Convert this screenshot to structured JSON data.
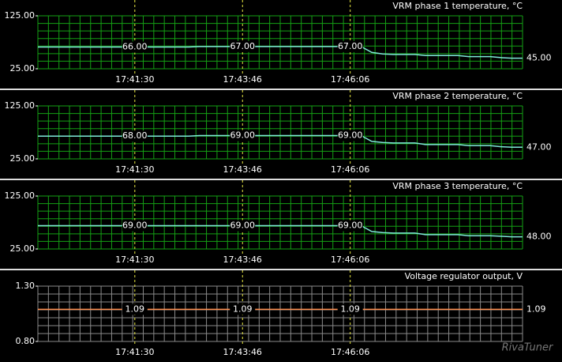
{
  "chart_data": [
    {
      "type": "line",
      "title": "VRM phase 1 temperature, °C",
      "categories": [
        null,
        null,
        null,
        null,
        null,
        null,
        null,
        null,
        null,
        "17:41:30",
        null,
        null,
        null,
        null,
        null,
        null,
        null,
        null,
        null,
        "17:43:46",
        null,
        null,
        null,
        null,
        null,
        null,
        null,
        null,
        null,
        "17:46:06",
        null,
        null,
        null,
        null,
        null,
        null,
        null,
        null,
        null,
        null,
        null,
        null,
        null,
        null,
        null,
        null
      ],
      "values": [
        66,
        66,
        66,
        66,
        66,
        66,
        66,
        66,
        66,
        66,
        66,
        66,
        66,
        66,
        66,
        67,
        67,
        67,
        67,
        67,
        67,
        67,
        67,
        67,
        67,
        67,
        67,
        67,
        67,
        67,
        67,
        56,
        53,
        52,
        52,
        52,
        50,
        50,
        50,
        50,
        48,
        48,
        48,
        46,
        45,
        45
      ],
      "value_labels": [
        null,
        null,
        null,
        null,
        null,
        null,
        null,
        null,
        null,
        "66.00",
        null,
        null,
        null,
        null,
        null,
        null,
        null,
        null,
        null,
        "67.00",
        null,
        null,
        null,
        null,
        null,
        null,
        null,
        null,
        null,
        "67.00",
        null,
        null,
        null,
        null,
        null,
        null,
        null,
        null,
        null,
        null,
        null,
        null,
        null,
        null,
        null,
        "45.00"
      ],
      "color": "#7fe8d8",
      "grid": true,
      "grid_color": "#14a014",
      "ylim": [
        25,
        125
      ],
      "yticks": [
        {
          "value": 125,
          "label": "125.00"
        },
        {
          "value": 25,
          "label": "25.00"
        }
      ]
    },
    {
      "type": "line",
      "title": "VRM phase 2 temperature, °C",
      "categories": [
        null,
        null,
        null,
        null,
        null,
        null,
        null,
        null,
        null,
        "17:41:30",
        null,
        null,
        null,
        null,
        null,
        null,
        null,
        null,
        null,
        "17:43:46",
        null,
        null,
        null,
        null,
        null,
        null,
        null,
        null,
        null,
        "17:46:06",
        null,
        null,
        null,
        null,
        null,
        null,
        null,
        null,
        null,
        null,
        null,
        null,
        null,
        null,
        null,
        null
      ],
      "values": [
        68,
        68,
        68,
        68,
        68,
        68,
        68,
        68,
        68,
        68,
        68,
        68,
        68,
        68,
        68,
        69,
        69,
        69,
        69,
        69,
        69,
        69,
        69,
        69,
        69,
        69,
        69,
        69,
        69,
        69,
        69,
        58,
        56,
        55,
        55,
        55,
        52,
        52,
        52,
        52,
        50,
        50,
        50,
        48,
        47,
        47
      ],
      "value_labels": [
        null,
        null,
        null,
        null,
        null,
        null,
        null,
        null,
        null,
        "68.00",
        null,
        null,
        null,
        null,
        null,
        null,
        null,
        null,
        null,
        "69.00",
        null,
        null,
        null,
        null,
        null,
        null,
        null,
        null,
        null,
        "69.00",
        null,
        null,
        null,
        null,
        null,
        null,
        null,
        null,
        null,
        null,
        null,
        null,
        null,
        null,
        null,
        "47.00"
      ],
      "color": "#7fe8d8",
      "grid": true,
      "grid_color": "#14a014",
      "ylim": [
        25,
        125
      ],
      "yticks": [
        {
          "value": 125,
          "label": "125.00"
        },
        {
          "value": 25,
          "label": "25.00"
        }
      ]
    },
    {
      "type": "line",
      "title": "VRM phase 3 temperature, °C",
      "categories": [
        null,
        null,
        null,
        null,
        null,
        null,
        null,
        null,
        null,
        "17:41:30",
        null,
        null,
        null,
        null,
        null,
        null,
        null,
        null,
        null,
        "17:43:46",
        null,
        null,
        null,
        null,
        null,
        null,
        null,
        null,
        null,
        "17:46:06",
        null,
        null,
        null,
        null,
        null,
        null,
        null,
        null,
        null,
        null,
        null,
        null,
        null,
        null,
        null,
        null
      ],
      "values": [
        69,
        69,
        69,
        69,
        69,
        69,
        69,
        69,
        69,
        69,
        69,
        69,
        69,
        69,
        69,
        69,
        69,
        69,
        69,
        69,
        69,
        69,
        69,
        69,
        69,
        69,
        69,
        69,
        69,
        69,
        69,
        58,
        56,
        55,
        55,
        55,
        52,
        52,
        52,
        52,
        50,
        50,
        50,
        49,
        48,
        48
      ],
      "value_labels": [
        null,
        null,
        null,
        null,
        null,
        null,
        null,
        null,
        null,
        "69.00",
        null,
        null,
        null,
        null,
        null,
        null,
        null,
        null,
        null,
        "69.00",
        null,
        null,
        null,
        null,
        null,
        null,
        null,
        null,
        null,
        "69.00",
        null,
        null,
        null,
        null,
        null,
        null,
        null,
        null,
        null,
        null,
        null,
        null,
        null,
        null,
        null,
        "48.00"
      ],
      "color": "#7fe8d8",
      "grid": true,
      "grid_color": "#14a014",
      "ylim": [
        25,
        125
      ],
      "yticks": [
        {
          "value": 125,
          "label": "125.00"
        },
        {
          "value": 25,
          "label": "25.00"
        }
      ]
    },
    {
      "type": "line",
      "title": "Voltage regulator output, V",
      "categories": [
        null,
        null,
        null,
        null,
        null,
        null,
        null,
        null,
        null,
        "17:41:30",
        null,
        null,
        null,
        null,
        null,
        null,
        null,
        null,
        null,
        "17:43:46",
        null,
        null,
        null,
        null,
        null,
        null,
        null,
        null,
        null,
        "17:46:06",
        null,
        null,
        null,
        null,
        null,
        null,
        null,
        null,
        null,
        null,
        null,
        null,
        null,
        null,
        null,
        null
      ],
      "values": [
        1.09,
        1.09,
        1.09,
        1.09,
        1.09,
        1.09,
        1.09,
        1.09,
        1.09,
        1.09,
        1.09,
        1.09,
        1.09,
        1.09,
        1.09,
        1.09,
        1.09,
        1.09,
        1.09,
        1.09,
        1.09,
        1.09,
        1.09,
        1.09,
        1.09,
        1.09,
        1.09,
        1.09,
        1.09,
        1.09,
        1.09,
        1.09,
        1.09,
        1.09,
        1.09,
        1.09,
        1.09,
        1.09,
        1.09,
        1.09,
        1.09,
        1.09,
        1.09,
        1.09,
        1.09,
        1.09
      ],
      "value_labels": [
        null,
        null,
        null,
        null,
        null,
        null,
        null,
        null,
        null,
        "1.09",
        null,
        null,
        null,
        null,
        null,
        null,
        null,
        null,
        null,
        "1.09",
        null,
        null,
        null,
        null,
        null,
        null,
        null,
        null,
        null,
        "1.09",
        null,
        null,
        null,
        null,
        null,
        null,
        null,
        null,
        null,
        null,
        null,
        null,
        null,
        null,
        null,
        "1.09"
      ],
      "color": "#ff9050",
      "grid": true,
      "grid_color": "#8a8a8a",
      "ylim": [
        0.8,
        1.3
      ],
      "yticks": [
        {
          "value": 1.3,
          "label": "1.30"
        },
        {
          "value": 0.8,
          "label": "0.80"
        }
      ]
    }
  ],
  "watermark": "RivaTuner"
}
